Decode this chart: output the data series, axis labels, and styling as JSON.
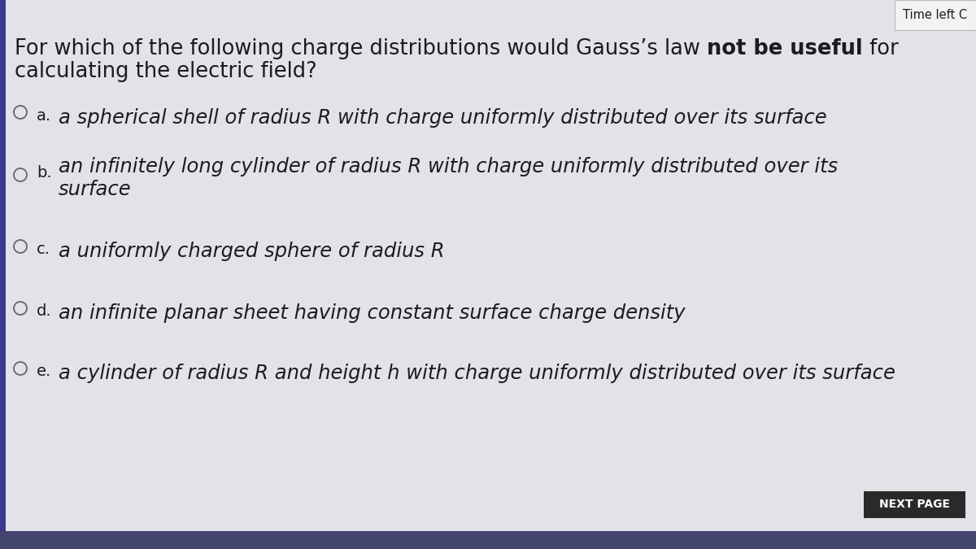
{
  "bg_color": "#cfd0d8",
  "content_bg": "#e2e3e8",
  "bottom_bar_color": "#44456e",
  "left_bar_color": "#3a3a8c",
  "text_color": "#1c1c1e",
  "circle_color": "#666666",
  "timer_box_bg": "#f2f2f2",
  "timer_box_border": "#bbbbbb",
  "timer_text": "Time left C",
  "next_button_bg": "#2a2a2a",
  "next_button_text_color": "#ffffff",
  "next_button_text": "NEXT PAGE",
  "question_part1": "For which of the following charge distributions would Gauss’s law ",
  "question_bold": "not be useful",
  "question_part2": " for",
  "question_line2": "calculating the electric field?",
  "options": [
    {
      "label": "a.",
      "line1": "a spherical shell of radius R with charge uniformly distributed over its surface",
      "line2": null
    },
    {
      "label": "b.",
      "line1": "an infinitely long cylinder of radius R with charge uniformly distributed over its",
      "line2": "surface"
    },
    {
      "label": "c.",
      "line1": "a uniformly charged sphere of radius R",
      "line2": null
    },
    {
      "label": "d.",
      "line1": "an infinite planar sheet having constant surface charge density",
      "line2": null
    },
    {
      "label": "e.",
      "line1": "a cylinder of radius R and height h with charge uniformly distributed over its surface",
      "line2": null
    }
  ]
}
